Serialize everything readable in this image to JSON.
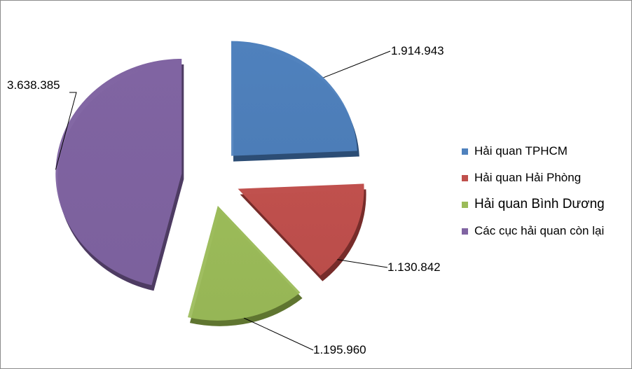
{
  "chart_data": {
    "type": "pie",
    "exploded": true,
    "three_d": true,
    "legend_position": "right",
    "series": [
      {
        "values": [
          1914943,
          1130842,
          1195960,
          3638385
        ],
        "labels": [
          "1.914.943",
          "1.130.842",
          "1.195.960",
          "3.638.385"
        ]
      }
    ],
    "categories": [
      "Hải quan TPHCM",
      "Hải quan Hải Phòng",
      "Hải quan Bình Dương",
      "Các cục hải quan còn lại"
    ],
    "colors": [
      "#4f81bd",
      "#c0504d",
      "#9bbb59",
      "#8064a2"
    ],
    "dark_colors": [
      "#2c4d75",
      "#772c2a",
      "#5f7530",
      "#4d3b62"
    ]
  }
}
